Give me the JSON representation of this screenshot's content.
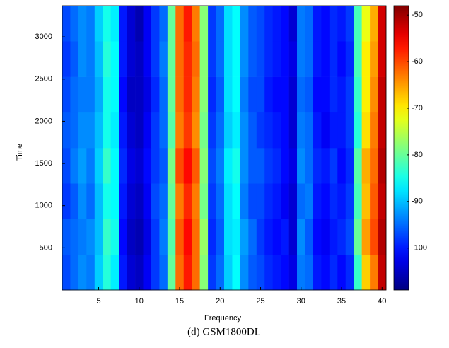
{
  "chart_data": {
    "type": "heatmap",
    "x_label": "Frequency",
    "y_label": "Time",
    "caption": "(d) GSM1800DL",
    "colormap": "jet",
    "x": [
      1,
      2,
      3,
      4,
      5,
      6,
      7,
      8,
      9,
      10,
      11,
      12,
      13,
      14,
      15,
      16,
      17,
      18,
      19,
      20,
      21,
      22,
      23,
      24,
      25,
      26,
      27,
      28,
      29,
      30,
      31,
      32,
      33,
      34,
      35,
      36,
      37,
      38,
      39,
      40
    ],
    "y_edges": [
      0,
      421,
      842,
      1264,
      1685,
      2106,
      2527,
      2949,
      3370
    ],
    "z": [
      [
        -97,
        -95,
        -93,
        -94,
        -89,
        -84,
        -87,
        -100,
        -104,
        -105,
        -102,
        -98,
        -95,
        -80,
        -62,
        -57,
        -62,
        -78,
        -98,
        -95,
        -89,
        -86,
        -93,
        -96,
        -97,
        -99,
        -100,
        -101,
        -103,
        -94,
        -95,
        -100,
        -101,
        -99,
        -101,
        -99,
        -83,
        -68,
        -63,
        -52
      ],
      [
        -96,
        -95,
        -94,
        -93,
        -90,
        -83,
        -85,
        -101,
        -105,
        -106,
        -103,
        -98,
        -94,
        -81,
        -61,
        -56,
        -62,
        -77,
        -99,
        -96,
        -88,
        -87,
        -92,
        -95,
        -98,
        -100,
        -101,
        -100,
        -104,
        -93,
        -96,
        -101,
        -102,
        -100,
        -99,
        -97,
        -80,
        -65,
        -60,
        -51
      ],
      [
        -98,
        -96,
        -93,
        -95,
        -90,
        -85,
        -86,
        -100,
        -104,
        -105,
        -102,
        -97,
        -95,
        -80,
        -63,
        -58,
        -63,
        -79,
        -98,
        -95,
        -88,
        -86,
        -94,
        -97,
        -97,
        -99,
        -100,
        -102,
        -104,
        -95,
        -94,
        -100,
        -101,
        -99,
        -100,
        -98,
        -82,
        -67,
        -61,
        -52
      ],
      [
        -97,
        -94,
        -92,
        -94,
        -89,
        -83,
        -86,
        -99,
        -103,
        -104,
        -101,
        -98,
        -96,
        -79,
        -60,
        -56,
        -61,
        -78,
        -97,
        -94,
        -87,
        -85,
        -93,
        -96,
        -96,
        -98,
        -99,
        -101,
        -103,
        -93,
        -95,
        -99,
        -100,
        -98,
        -101,
        -99,
        -81,
        -66,
        -62,
        -51
      ],
      [
        -96,
        -95,
        -93,
        -93,
        -90,
        -85,
        -87,
        -100,
        -104,
        -105,
        -102,
        -98,
        -95,
        -81,
        -63,
        -59,
        -64,
        -79,
        -98,
        -95,
        -89,
        -87,
        -93,
        -96,
        -98,
        -99,
        -100,
        -101,
        -104,
        -94,
        -95,
        -100,
        -102,
        -100,
        -100,
        -98,
        -84,
        -69,
        -63,
        -52
      ],
      [
        -97,
        -95,
        -94,
        -94,
        -91,
        -85,
        -86,
        -101,
        -105,
        -105,
        -103,
        -99,
        -95,
        -80,
        -62,
        -58,
        -63,
        -78,
        -99,
        -96,
        -88,
        -86,
        -94,
        -97,
        -97,
        -100,
        -101,
        -101,
        -104,
        -95,
        -96,
        -101,
        -101,
        -99,
        -100,
        -98,
        -83,
        -70,
        -64,
        -52
      ],
      [
        -98,
        -96,
        -93,
        -94,
        -90,
        -84,
        -86,
        -100,
        -104,
        -105,
        -102,
        -98,
        -94,
        -80,
        -62,
        -58,
        -62,
        -78,
        -98,
        -95,
        -88,
        -86,
        -93,
        -96,
        -97,
        -99,
        -100,
        -101,
        -103,
        -94,
        -95,
        -100,
        -101,
        -99,
        -101,
        -99,
        -82,
        -70,
        -65,
        -53
      ],
      [
        -97,
        -95,
        -93,
        -94,
        -89,
        -85,
        -87,
        -100,
        -104,
        -106,
        -102,
        -98,
        -95,
        -80,
        -62,
        -57,
        -63,
        -78,
        -98,
        -95,
        -88,
        -86,
        -93,
        -96,
        -97,
        -99,
        -100,
        -101,
        -104,
        -94,
        -95,
        -100,
        -101,
        -99,
        -100,
        -98,
        -82,
        -72,
        -66,
        -53
      ]
    ],
    "xlim": [
      0.5,
      40.5
    ],
    "ylim": [
      0,
      3370
    ],
    "clim": [
      -109,
      -48
    ],
    "xticks": [
      5,
      10,
      15,
      20,
      25,
      30,
      35,
      40
    ],
    "yticks": [
      500,
      1000,
      1500,
      2000,
      2500,
      3000
    ],
    "cticks": [
      -100,
      -90,
      -80,
      -70,
      -60,
      -50
    ]
  }
}
